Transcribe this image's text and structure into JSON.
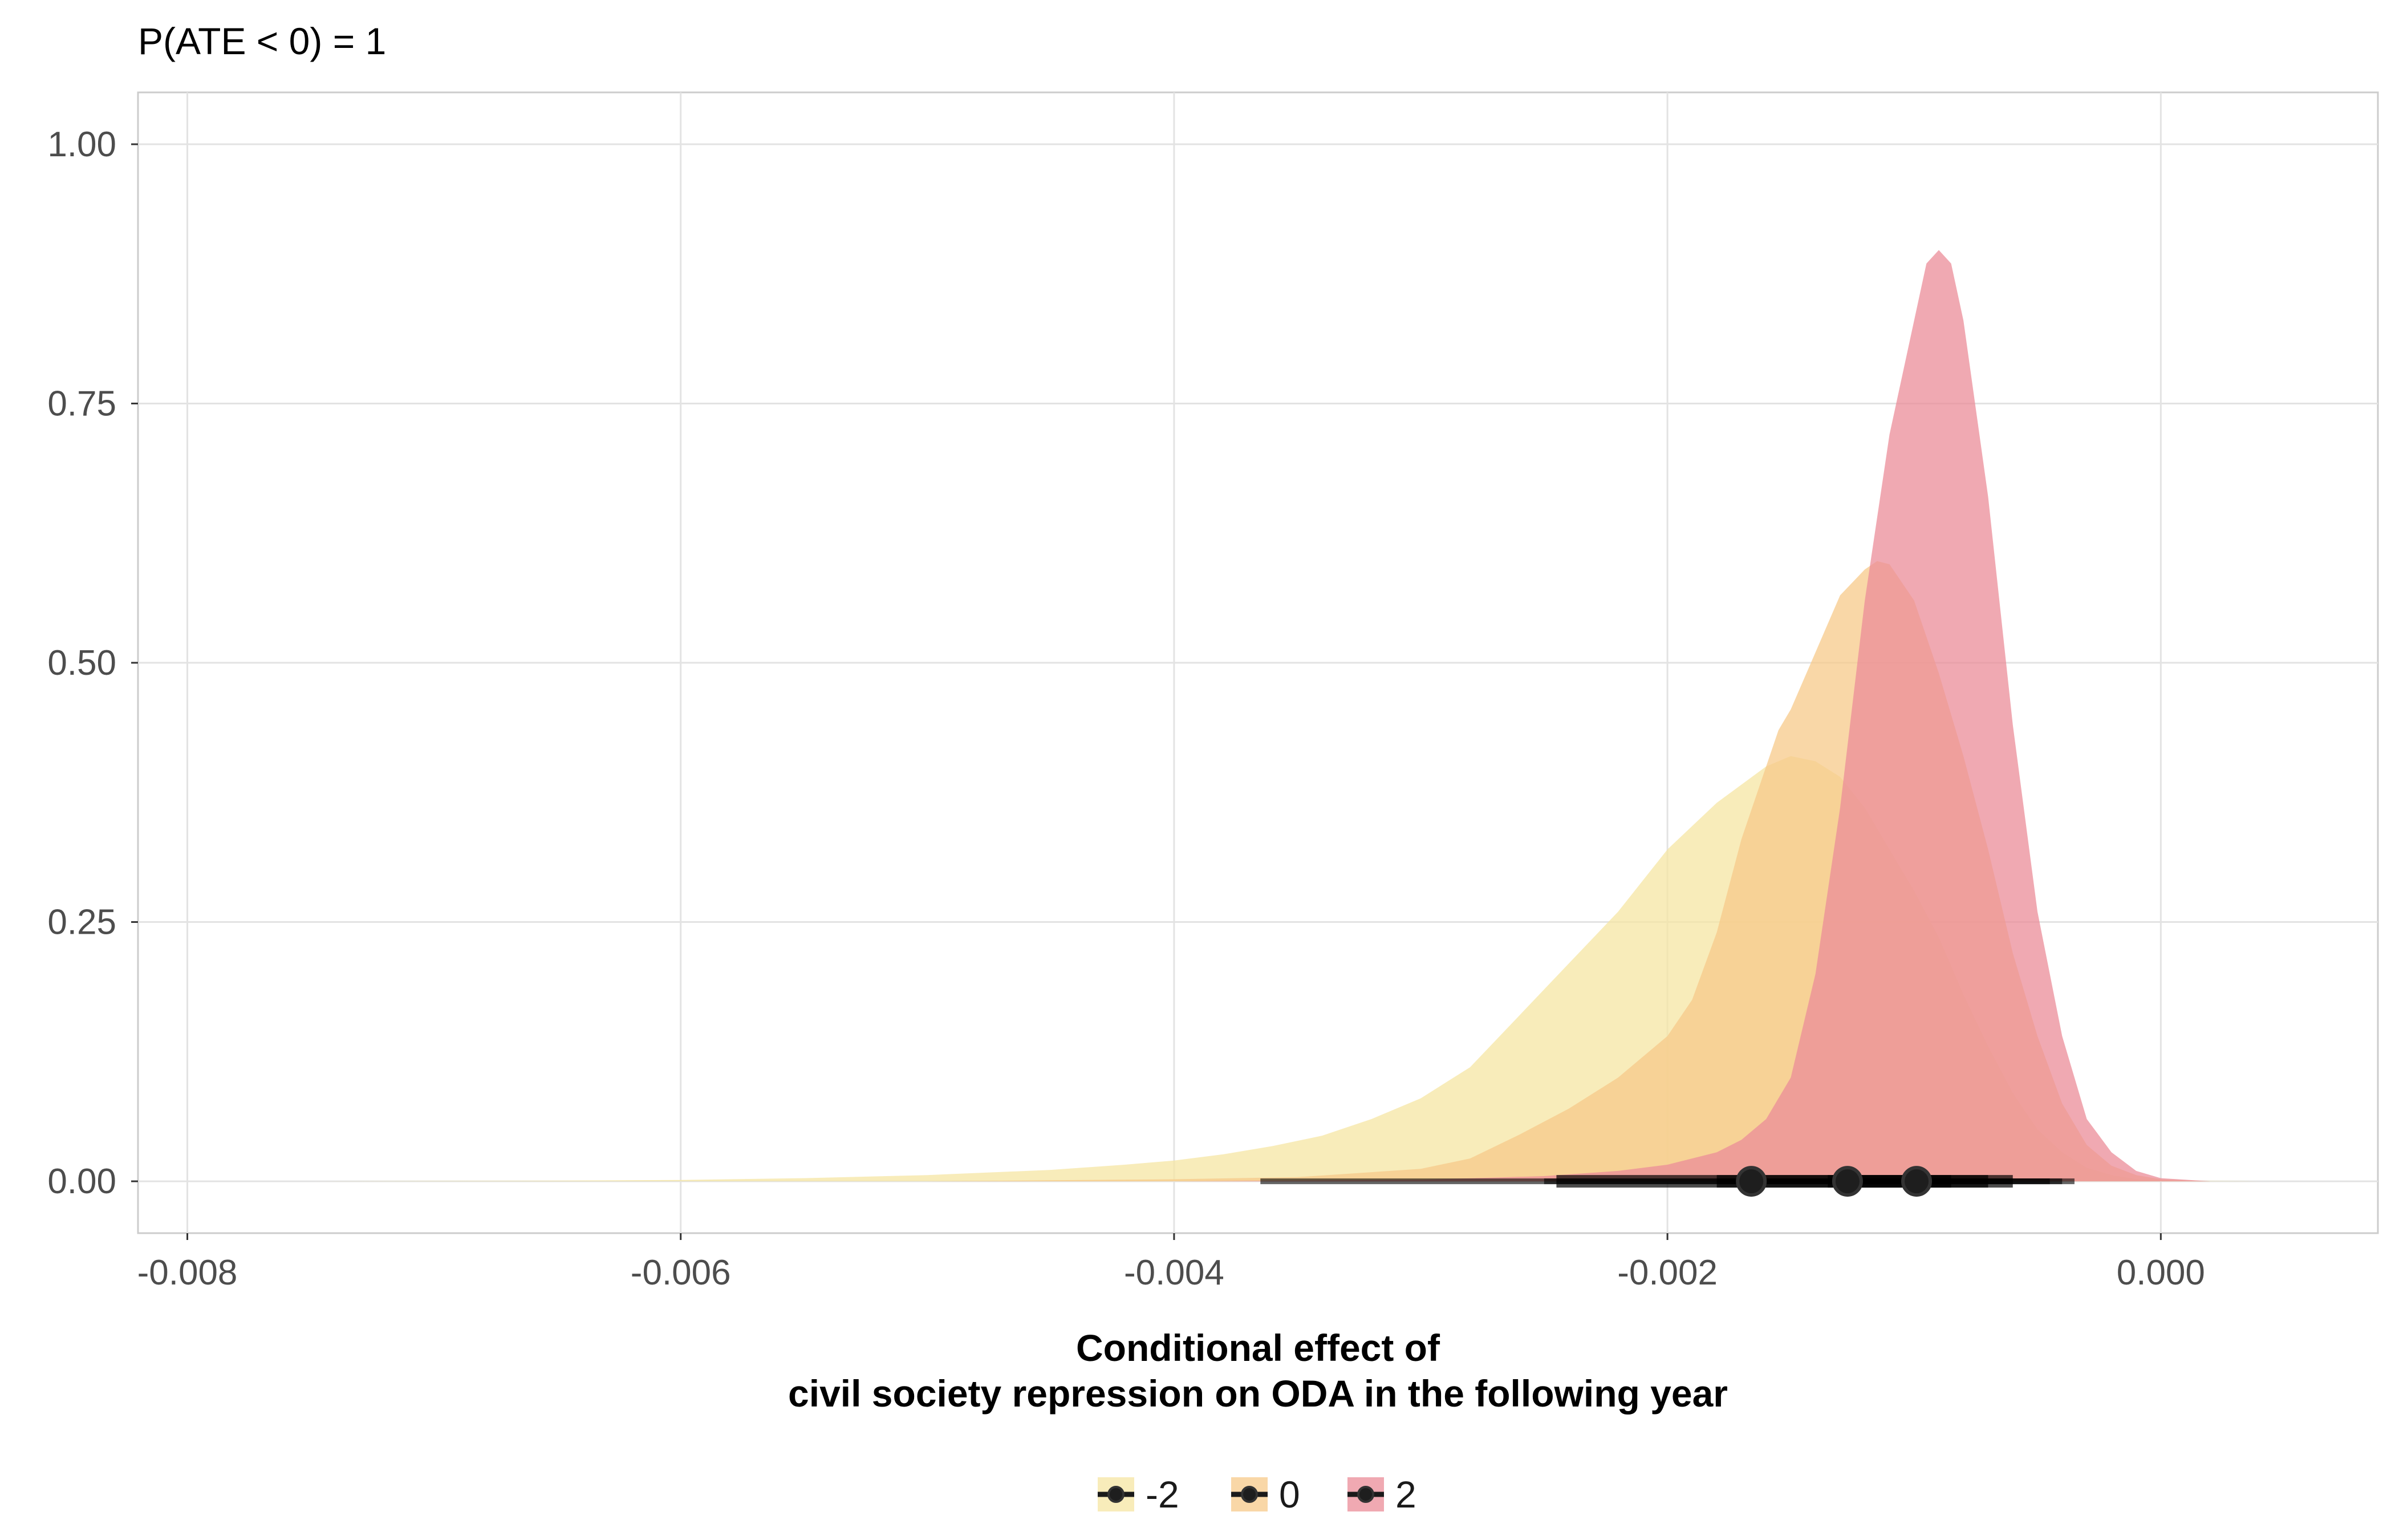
{
  "chart_data": {
    "type": "area",
    "title": "P(ATE < 0) = 1",
    "xlabel_lines": [
      "Conditional effect of",
      "civil society repression on ODA in the following year"
    ],
    "ylabel": "",
    "xlim": [
      -0.0082,
      0.00088
    ],
    "ylim": [
      -0.05,
      1.05
    ],
    "x_ticks": [
      -0.008,
      -0.006,
      -0.004,
      -0.002,
      0.0
    ],
    "x_tick_labels": [
      "-0.008",
      "-0.006",
      "-0.004",
      "-0.002",
      "0.000"
    ],
    "y_ticks": [
      0.0,
      0.25,
      0.5,
      0.75,
      1.0
    ],
    "y_tick_labels": [
      "0.00",
      "0.25",
      "0.50",
      "0.75",
      "1.00"
    ],
    "grid": true,
    "legend_position": "bottom",
    "series": [
      {
        "name": "-2",
        "color": "#f5e6a3",
        "opacity": 0.75,
        "points": [
          [
            -0.0075,
            0.0
          ],
          [
            -0.0065,
            0.0006
          ],
          [
            -0.006,
            0.0013
          ],
          [
            -0.0055,
            0.003
          ],
          [
            -0.005,
            0.006
          ],
          [
            -0.0045,
            0.011
          ],
          [
            -0.0042,
            0.016
          ],
          [
            -0.004,
            0.02
          ],
          [
            -0.0038,
            0.026
          ],
          [
            -0.0036,
            0.034
          ],
          [
            -0.0034,
            0.044
          ],
          [
            -0.0032,
            0.06
          ],
          [
            -0.003,
            0.08
          ],
          [
            -0.0028,
            0.11
          ],
          [
            -0.0026,
            0.16
          ],
          [
            -0.0024,
            0.21
          ],
          [
            -0.0022,
            0.26
          ],
          [
            -0.002,
            0.32
          ],
          [
            -0.0018,
            0.365
          ],
          [
            -0.0016,
            0.4
          ],
          [
            -0.0015,
            0.41
          ],
          [
            -0.0014,
            0.405
          ],
          [
            -0.0013,
            0.39
          ],
          [
            -0.0012,
            0.36
          ],
          [
            -0.0011,
            0.32
          ],
          [
            -0.001,
            0.28
          ],
          [
            -0.0009,
            0.235
          ],
          [
            -0.0008,
            0.18
          ],
          [
            -0.0007,
            0.13
          ],
          [
            -0.0006,
            0.085
          ],
          [
            -0.0005,
            0.05
          ],
          [
            -0.0004,
            0.028
          ],
          [
            -0.0003,
            0.013
          ],
          [
            -0.0002,
            0.006
          ],
          [
            -0.0001,
            0.002
          ],
          [
            0.0,
            0.0008
          ],
          [
            0.0002,
            0.0003
          ],
          [
            0.0004,
            0.0
          ]
        ],
        "summary": {
          "point": -0.00166,
          "inner": [
            -0.00245,
            -0.00085
          ],
          "outer": [
            -0.00365,
            -0.00045
          ]
        }
      },
      {
        "name": "0",
        "color": "#f7c98a",
        "opacity": 0.75,
        "points": [
          [
            -0.005,
            0.0
          ],
          [
            -0.0045,
            0.001
          ],
          [
            -0.004,
            0.002
          ],
          [
            -0.0035,
            0.004
          ],
          [
            -0.003,
            0.012
          ],
          [
            -0.0028,
            0.022
          ],
          [
            -0.0026,
            0.045
          ],
          [
            -0.0024,
            0.07
          ],
          [
            -0.0022,
            0.1
          ],
          [
            -0.002,
            0.14
          ],
          [
            -0.0019,
            0.175
          ],
          [
            -0.0018,
            0.24
          ],
          [
            -0.0017,
            0.33
          ],
          [
            -0.0016,
            0.4
          ],
          [
            -0.00155,
            0.435
          ],
          [
            -0.0015,
            0.455
          ],
          [
            -0.0014,
            0.51
          ],
          [
            -0.0013,
            0.565
          ],
          [
            -0.0012,
            0.59
          ],
          [
            -0.00115,
            0.598
          ],
          [
            -0.0011,
            0.595
          ],
          [
            -0.001,
            0.56
          ],
          [
            -0.0009,
            0.49
          ],
          [
            -0.0008,
            0.41
          ],
          [
            -0.0007,
            0.32
          ],
          [
            -0.0006,
            0.22
          ],
          [
            -0.0005,
            0.14
          ],
          [
            -0.0004,
            0.075
          ],
          [
            -0.0003,
            0.035
          ],
          [
            -0.0002,
            0.015
          ],
          [
            -0.0001,
            0.006
          ],
          [
            0.0,
            0.002
          ],
          [
            0.0002,
            0.0
          ]
        ],
        "summary": {
          "point": -0.00127,
          "inner": [
            -0.0018,
            -0.0007
          ],
          "outer": [
            -0.0025,
            -0.0004
          ]
        }
      },
      {
        "name": "2",
        "color": "#eb8c98",
        "opacity": 0.75,
        "points": [
          [
            -0.004,
            0.0
          ],
          [
            -0.003,
            0.0015
          ],
          [
            -0.0025,
            0.005
          ],
          [
            -0.0022,
            0.01
          ],
          [
            -0.002,
            0.016
          ],
          [
            -0.0018,
            0.028
          ],
          [
            -0.0017,
            0.04
          ],
          [
            -0.0016,
            0.06
          ],
          [
            -0.0015,
            0.1
          ],
          [
            -0.0014,
            0.2
          ],
          [
            -0.0013,
            0.36
          ],
          [
            -0.0012,
            0.56
          ],
          [
            -0.0011,
            0.72
          ],
          [
            -0.001,
            0.83
          ],
          [
            -0.00095,
            0.885
          ],
          [
            -0.0009,
            0.898
          ],
          [
            -0.00085,
            0.885
          ],
          [
            -0.0008,
            0.83
          ],
          [
            -0.0007,
            0.66
          ],
          [
            -0.0006,
            0.44
          ],
          [
            -0.0005,
            0.26
          ],
          [
            -0.0004,
            0.14
          ],
          [
            -0.0003,
            0.06
          ],
          [
            -0.0002,
            0.028
          ],
          [
            -0.0001,
            0.01
          ],
          [
            0.0,
            0.003
          ],
          [
            0.0002,
            0.0
          ]
        ],
        "summary": {
          "point": -0.00099,
          "inner": [
            -0.00135,
            -0.0006
          ],
          "outer": [
            -0.0018,
            -0.00035
          ]
        }
      }
    ]
  }
}
